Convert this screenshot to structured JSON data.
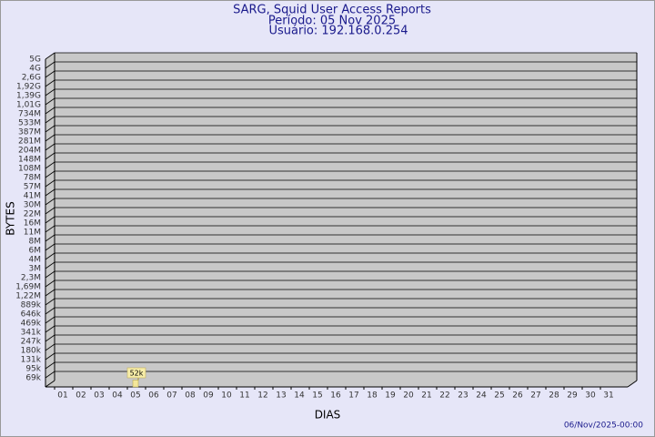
{
  "chart_data": {
    "type": "bar",
    "title": "SARG, Squid User Access Reports",
    "subtitle": [
      "Período: 05 Nov 2025",
      "Usuário: 192.168.0.254"
    ],
    "x_label": "DIAS",
    "y_label": "BYTES",
    "footer": "06/Nov/2025-00:00",
    "categories": [
      "01",
      "02",
      "03",
      "04",
      "05",
      "06",
      "07",
      "08",
      "09",
      "10",
      "11",
      "12",
      "13",
      "14",
      "15",
      "16",
      "17",
      "18",
      "19",
      "20",
      "21",
      "22",
      "23",
      "24",
      "25",
      "26",
      "27",
      "28",
      "29",
      "30",
      "31"
    ],
    "values": [
      null,
      null,
      null,
      null,
      52000,
      null,
      null,
      null,
      null,
      null,
      null,
      null,
      null,
      null,
      null,
      null,
      null,
      null,
      null,
      null,
      null,
      null,
      null,
      null,
      null,
      null,
      null,
      null,
      null,
      null,
      null
    ],
    "value_labels": [
      null,
      null,
      null,
      null,
      "52k",
      null,
      null,
      null,
      null,
      null,
      null,
      null,
      null,
      null,
      null,
      null,
      null,
      null,
      null,
      null,
      null,
      null,
      null,
      null,
      null,
      null,
      null,
      null,
      null,
      null,
      null
    ],
    "color": "#f4e79a",
    "ylim": [
      0,
      5000000000
    ],
    "yticks": [
      {
        "value": 69000,
        "label": "69k"
      },
      {
        "value": 95000,
        "label": "95k"
      },
      {
        "value": 131000,
        "label": "131k"
      },
      {
        "value": 180000,
        "label": "180k"
      },
      {
        "value": 247000,
        "label": "247k"
      },
      {
        "value": 341000,
        "label": "341k"
      },
      {
        "value": 469000,
        "label": "469k"
      },
      {
        "value": 646000,
        "label": "646k"
      },
      {
        "value": 889000,
        "label": "889k"
      },
      {
        "value": 1220000,
        "label": "1,22M"
      },
      {
        "value": 1690000,
        "label": "1,69M"
      },
      {
        "value": 2300000,
        "label": "2,3M"
      },
      {
        "value": 3000000,
        "label": "3M"
      },
      {
        "value": 4000000,
        "label": "4M"
      },
      {
        "value": 6000000,
        "label": "6M"
      },
      {
        "value": 8000000,
        "label": "8M"
      },
      {
        "value": 11000000,
        "label": "11M"
      },
      {
        "value": 16000000,
        "label": "16M"
      },
      {
        "value": 22000000,
        "label": "22M"
      },
      {
        "value": 30000000,
        "label": "30M"
      },
      {
        "value": 41000000,
        "label": "41M"
      },
      {
        "value": 57000000,
        "label": "57M"
      },
      {
        "value": 78000000,
        "label": "78M"
      },
      {
        "value": 108000000,
        "label": "108M"
      },
      {
        "value": 148000000,
        "label": "148M"
      },
      {
        "value": 204000000,
        "label": "204M"
      },
      {
        "value": 281000000,
        "label": "281M"
      },
      {
        "value": 387000000,
        "label": "387M"
      },
      {
        "value": 533000000,
        "label": "533M"
      },
      {
        "value": 734000000,
        "label": "734M"
      },
      {
        "value": 1010000000,
        "label": "1,01G"
      },
      {
        "value": 1390000000,
        "label": "1,39G"
      },
      {
        "value": 1920000000,
        "label": "1,92G"
      },
      {
        "value": 2600000000,
        "label": "2,6G"
      },
      {
        "value": 4000000000,
        "label": "4G"
      },
      {
        "value": 5000000000,
        "label": "5G"
      }
    ],
    "grid": true
  }
}
